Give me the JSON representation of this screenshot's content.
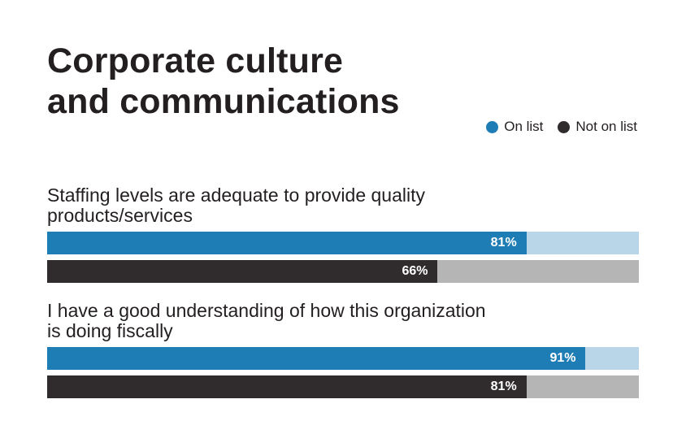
{
  "chart_data": {
    "type": "bar",
    "orientation": "horizontal",
    "title": "Corporate culture\nand communications",
    "categories": [
      "Staffing levels are adequate to provide quality products/services",
      "I have a good understanding of how this organization is doing fiscally"
    ],
    "category_lines": [
      [
        "Staffing levels are adequate to provide quality",
        "products/services"
      ],
      [
        "I have a good understanding of how this organization",
        "is doing fiscally"
      ]
    ],
    "series": [
      {
        "name": "On list",
        "values": [
          81,
          91
        ],
        "labels": [
          "81%",
          "91%"
        ]
      },
      {
        "name": "Not on list",
        "values": [
          66,
          81
        ],
        "labels": [
          "66%",
          "81%"
        ]
      }
    ],
    "xlim": [
      0,
      100
    ],
    "unit": "%",
    "legend_position": "top-right",
    "grid": false
  },
  "colors": {
    "on_list": "#1f7db5",
    "on_list_track": "#b8d6e8",
    "not_on_list": "#302b2c",
    "not_on_list_track": "#b6b5b6",
    "text": "#231f20"
  }
}
